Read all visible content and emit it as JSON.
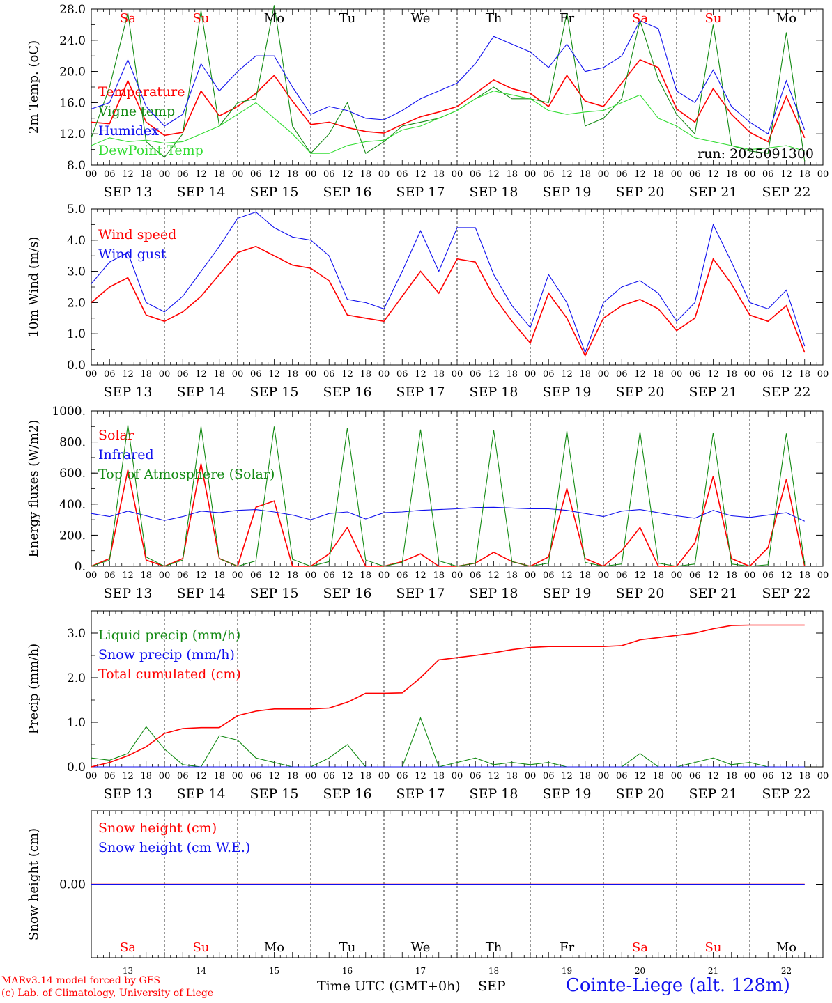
{
  "run_label": "run: 2025091300",
  "hour_labels": [
    "00",
    "06",
    "12",
    "18"
  ],
  "final_hour_label": "00",
  "date_labels": [
    "SEP 13",
    "SEP 14",
    "SEP 15",
    "SEP 16",
    "SEP 17",
    "SEP 18",
    "SEP 19",
    "SEP 20",
    "SEP 21",
    "SEP 22"
  ],
  "weekdays": [
    "Sa",
    "Su",
    "Mo",
    "Tu",
    "We",
    "Th",
    "Fr",
    "Sa",
    "Su",
    "Mo"
  ],
  "weekend_indices": [
    0,
    1,
    7,
    8
  ],
  "bottom_day_numbers": [
    "13",
    "14",
    "15",
    "16",
    "17",
    "18",
    "19",
    "20",
    "21",
    "22"
  ],
  "footer": {
    "credit_line1": "MARv3.14 model forced by GFS",
    "credit_line2": "(c) Lab. of Climatology, University of Liege",
    "xaxis_label": "Time UTC (GMT+0h)",
    "month": "SEP",
    "station": "Cointe-Liege (alt. 128m)"
  },
  "colors": {
    "red": "#ff0000",
    "darkgreen": "#138a13",
    "blue": "#1010ee",
    "lightgreen": "#33dd33",
    "weekend": "#ff0000",
    "weekday": "#000000"
  },
  "chart_data": [
    {
      "type": "line",
      "ylabel": "2m Temp. (oC)",
      "ylim": [
        8,
        28
      ],
      "yticks": [
        "8.0",
        "12.0",
        "16.0",
        "20.0",
        "24.0",
        "28.0"
      ],
      "ytick_values": [
        8,
        12,
        16,
        20,
        24,
        28
      ],
      "x_hours": [
        0,
        6,
        12,
        18,
        24,
        30,
        36,
        42,
        48,
        54,
        60,
        66,
        72,
        78,
        84,
        90,
        96,
        102,
        108,
        114,
        120,
        126,
        132,
        138,
        144,
        150,
        156,
        162,
        168,
        174,
        180,
        186,
        192,
        198,
        204,
        210,
        216,
        222,
        228,
        234
      ],
      "series": [
        {
          "name": "Temperature",
          "color": "red",
          "values": [
            13.5,
            13.3,
            18.8,
            13.5,
            11.8,
            12.2,
            17.5,
            14.3,
            15.5,
            17.2,
            19.5,
            16.2,
            13.2,
            13.5,
            12.8,
            12.3,
            12.1,
            13.2,
            14.2,
            14.8,
            15.5,
            17.2,
            18.9,
            17.8,
            17.2,
            15.5,
            19.5,
            16.2,
            15.5,
            18.5,
            21.5,
            20.5,
            15.2,
            13.5,
            17.8,
            14.5,
            12.2,
            11.0,
            16.8,
            11.5
          ]
        },
        {
          "name": "Vigne temp",
          "color": "darkgreen",
          "values": [
            11.5,
            18.0,
            27.5,
            11.0,
            9.0,
            12.0,
            27.8,
            13.0,
            16.0,
            16.5,
            28.5,
            13.0,
            9.5,
            12.0,
            16.0,
            9.5,
            11.0,
            13.0,
            13.5,
            14.0,
            15.0,
            16.5,
            18.0,
            16.5,
            16.5,
            16.0,
            27.5,
            13.0,
            14.0,
            16.5,
            26.5,
            19.0,
            14.5,
            12.0,
            26.0,
            10.5,
            9.8,
            9.5,
            25.0,
            8.5
          ]
        },
        {
          "name": "Humidex",
          "color": "blue",
          "values": [
            15.2,
            16.0,
            21.5,
            15.5,
            13.0,
            14.5,
            21.0,
            17.5,
            20.0,
            22.0,
            22.0,
            18.0,
            14.5,
            15.5,
            15.0,
            14.0,
            13.8,
            15.0,
            16.5,
            17.5,
            18.5,
            21.0,
            24.5,
            23.5,
            22.5,
            20.5,
            23.5,
            20.0,
            20.5,
            22.0,
            26.5,
            25.5,
            17.5,
            16.0,
            20.2,
            15.5,
            13.5,
            12.0,
            18.8,
            12.5
          ]
        },
        {
          "name": "DewPoint Temp",
          "color": "lightgreen",
          "values": [
            10.5,
            11.5,
            11.0,
            11.2,
            10.8,
            11.0,
            12.0,
            13.0,
            14.5,
            16.0,
            14.0,
            12.0,
            9.5,
            9.5,
            10.5,
            11.0,
            11.2,
            12.5,
            13.0,
            14.0,
            15.0,
            16.5,
            17.5,
            17.0,
            16.5,
            15.0,
            14.5,
            14.8,
            15.0,
            16.0,
            17.0,
            14.0,
            13.0,
            11.5,
            11.0,
            10.5,
            10.0,
            10.2,
            10.5,
            9.8
          ]
        }
      ],
      "legend_position": "left"
    },
    {
      "type": "line",
      "ylabel": "10m Wind (m/s)",
      "ylim": [
        0,
        5
      ],
      "yticks": [
        "0.0",
        "1.0",
        "2.0",
        "3.0",
        "4.0",
        "5.0"
      ],
      "ytick_values": [
        0,
        1,
        2,
        3,
        4,
        5
      ],
      "x_hours": [
        0,
        6,
        12,
        18,
        24,
        30,
        36,
        42,
        48,
        54,
        60,
        66,
        72,
        78,
        84,
        90,
        96,
        102,
        108,
        114,
        120,
        126,
        132,
        138,
        144,
        150,
        156,
        162,
        168,
        174,
        180,
        186,
        192,
        198,
        204,
        210,
        216,
        222,
        228,
        234
      ],
      "series": [
        {
          "name": "Wind speed",
          "color": "red",
          "values": [
            2.0,
            2.5,
            2.8,
            1.6,
            1.4,
            1.7,
            2.2,
            2.9,
            3.6,
            3.8,
            3.5,
            3.2,
            3.1,
            2.7,
            1.6,
            1.5,
            1.4,
            2.2,
            3.0,
            2.3,
            3.4,
            3.3,
            2.2,
            1.4,
            0.7,
            2.3,
            1.5,
            0.3,
            1.5,
            1.9,
            2.1,
            1.8,
            1.1,
            1.5,
            3.4,
            2.6,
            1.6,
            1.4,
            1.9,
            0.4
          ]
        },
        {
          "name": "Wind gust",
          "color": "blue",
          "values": [
            2.6,
            3.3,
            3.6,
            2.0,
            1.7,
            2.2,
            3.0,
            3.8,
            4.7,
            4.9,
            4.4,
            4.1,
            4.0,
            3.5,
            2.1,
            2.0,
            1.8,
            3.0,
            4.3,
            3.0,
            4.4,
            4.4,
            2.9,
            1.9,
            1.2,
            2.9,
            2.0,
            0.4,
            2.0,
            2.5,
            2.7,
            2.3,
            1.4,
            2.0,
            4.5,
            3.3,
            2.0,
            1.8,
            2.4,
            0.6
          ]
        }
      ],
      "legend_position": "left"
    },
    {
      "type": "line",
      "ylabel": "Energy fluxes (W/m2)",
      "ylim": [
        0,
        1000
      ],
      "yticks": [
        "0.",
        "200.",
        "400.",
        "600.",
        "800.",
        "1000."
      ],
      "ytick_values": [
        0,
        200,
        400,
        600,
        800,
        1000
      ],
      "x_hours": [
        0,
        6,
        12,
        18,
        24,
        30,
        36,
        42,
        48,
        54,
        60,
        66,
        72,
        78,
        84,
        90,
        96,
        102,
        108,
        114,
        120,
        126,
        132,
        138,
        144,
        150,
        156,
        162,
        168,
        174,
        180,
        186,
        192,
        198,
        204,
        210,
        216,
        222,
        228,
        234
      ],
      "series": [
        {
          "name": "Solar",
          "color": "red",
          "values": [
            0,
            50,
            620,
            40,
            0,
            50,
            660,
            50,
            0,
            380,
            420,
            0,
            0,
            80,
            250,
            0,
            0,
            30,
            80,
            0,
            0,
            20,
            90,
            30,
            0,
            60,
            500,
            50,
            0,
            100,
            250,
            0,
            0,
            150,
            580,
            50,
            0,
            120,
            560,
            0
          ]
        },
        {
          "name": "Infrared",
          "color": "blue",
          "values": [
            340,
            320,
            355,
            325,
            295,
            320,
            355,
            345,
            360,
            365,
            350,
            330,
            300,
            340,
            350,
            305,
            345,
            350,
            360,
            365,
            370,
            378,
            380,
            375,
            370,
            370,
            360,
            340,
            320,
            355,
            365,
            345,
            325,
            310,
            360,
            325,
            315,
            330,
            345,
            290
          ]
        },
        {
          "name": "Top of Atmosphere (Solar)",
          "color": "darkgreen",
          "values": [
            0,
            40,
            910,
            60,
            0,
            40,
            900,
            50,
            0,
            35,
            900,
            45,
            0,
            30,
            890,
            40,
            0,
            25,
            880,
            35,
            0,
            20,
            875,
            30,
            0,
            20,
            870,
            25,
            0,
            15,
            865,
            20,
            0,
            15,
            860,
            15,
            0,
            10,
            855,
            10
          ]
        }
      ],
      "legend_position": "left"
    },
    {
      "type": "line",
      "ylabel": "Precip (mm/h)",
      "ylim": [
        0,
        3.5
      ],
      "yticks": [
        "0.0",
        "1.0",
        "2.0",
        "3.0"
      ],
      "ytick_values": [
        0,
        1,
        2,
        3
      ],
      "x_hours": [
        0,
        6,
        12,
        18,
        24,
        30,
        36,
        42,
        48,
        54,
        60,
        66,
        72,
        78,
        84,
        90,
        96,
        102,
        108,
        114,
        120,
        126,
        132,
        138,
        144,
        150,
        156,
        162,
        168,
        174,
        180,
        186,
        192,
        198,
        204,
        210,
        216,
        222,
        228,
        234
      ],
      "series": [
        {
          "name": "Liquid precip (mm/h)",
          "color": "darkgreen",
          "values": [
            0.2,
            0.15,
            0.3,
            0.9,
            0.4,
            0.05,
            0.0,
            0.7,
            0.6,
            0.2,
            0.1,
            0.0,
            0.0,
            0.2,
            0.5,
            0.0,
            0.0,
            0.0,
            1.1,
            0.0,
            0.1,
            0.2,
            0.05,
            0.1,
            0.05,
            0.1,
            0.0,
            0.0,
            0.0,
            0.0,
            0.3,
            0.0,
            0.0,
            0.1,
            0.2,
            0.05,
            0.1,
            0.0,
            0.0,
            0.0
          ]
        },
        {
          "name": "Snow precip (mm/h)",
          "color": "blue",
          "values": [
            0,
            0,
            0,
            0,
            0,
            0,
            0,
            0,
            0,
            0,
            0,
            0,
            0,
            0,
            0,
            0,
            0,
            0,
            0,
            0,
            0,
            0,
            0,
            0,
            0,
            0,
            0,
            0,
            0,
            0,
            0,
            0,
            0,
            0,
            0,
            0,
            0,
            0,
            0,
            0
          ]
        },
        {
          "name": "Total cumulated (cm)",
          "color": "red",
          "values": [
            0.0,
            0.1,
            0.25,
            0.45,
            0.75,
            0.86,
            0.88,
            0.88,
            1.15,
            1.25,
            1.3,
            1.3,
            1.3,
            1.32,
            1.45,
            1.65,
            1.65,
            1.66,
            2.0,
            2.4,
            2.45,
            2.5,
            2.56,
            2.63,
            2.68,
            2.7,
            2.7,
            2.7,
            2.7,
            2.72,
            2.85,
            2.9,
            2.95,
            3.0,
            3.1,
            3.17,
            3.18,
            3.18,
            3.18,
            3.18
          ]
        }
      ],
      "legend_position": "left"
    },
    {
      "type": "line",
      "ylabel": "Snow height (cm)",
      "yticks": [
        "0.00"
      ],
      "ytick_values": [
        0
      ],
      "x_hours": [
        0,
        234
      ],
      "series": [
        {
          "name": "Snow height (cm)",
          "color": "red",
          "values": [
            0,
            0
          ]
        },
        {
          "name": "Snow height (cm W.E.)",
          "color": "blue",
          "values": [
            0,
            0
          ]
        }
      ],
      "legend_position": "left"
    }
  ]
}
